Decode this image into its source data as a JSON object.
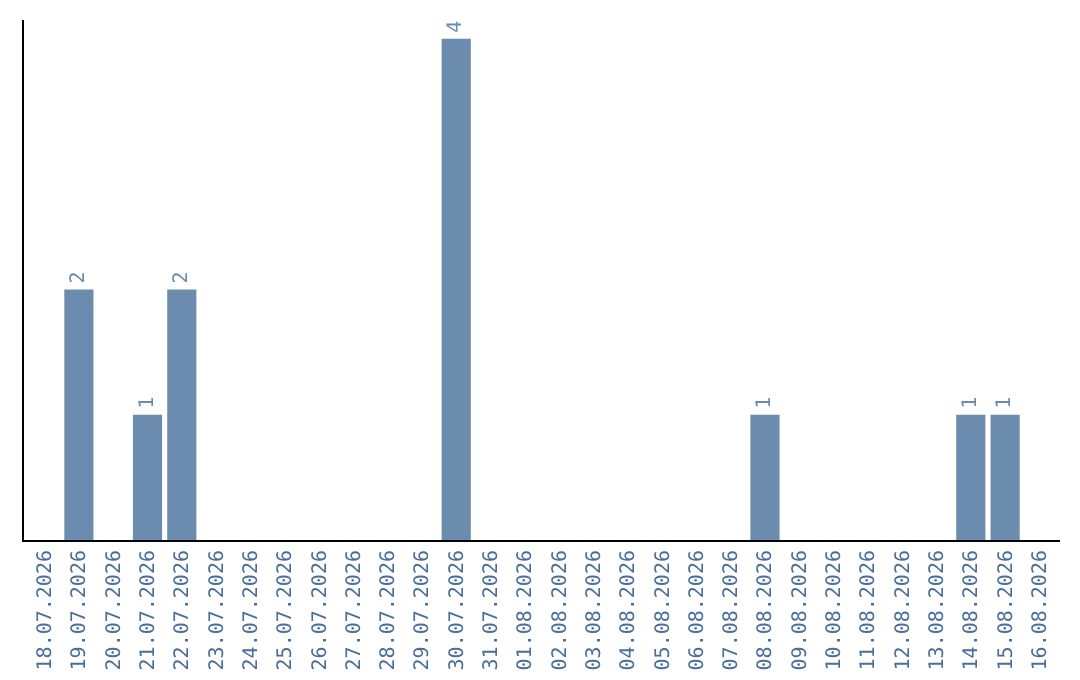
{
  "chart_data": {
    "type": "bar",
    "categories": [
      "18.07.2026",
      "19.07.2026",
      "20.07.2026",
      "21.07.2026",
      "22.07.2026",
      "23.07.2026",
      "24.07.2026",
      "25.07.2026",
      "26.07.2026",
      "27.07.2026",
      "28.07.2026",
      "29.07.2026",
      "30.07.2026",
      "31.07.2026",
      "01.08.2026",
      "02.08.2026",
      "03.08.2026",
      "04.08.2026",
      "05.08.2026",
      "06.08.2026",
      "07.08.2026",
      "08.08.2026",
      "09.08.2026",
      "10.08.2026",
      "11.08.2026",
      "12.08.2026",
      "13.08.2026",
      "14.08.2026",
      "15.08.2026",
      "16.08.2026"
    ],
    "values": [
      0,
      2,
      0,
      1,
      2,
      0,
      0,
      0,
      0,
      0,
      0,
      0,
      4,
      0,
      0,
      0,
      0,
      0,
      0,
      0,
      0,
      1,
      0,
      0,
      0,
      0,
      0,
      1,
      1,
      0
    ],
    "value_labels": [
      null,
      "2",
      null,
      "1",
      "2",
      null,
      null,
      null,
      null,
      null,
      null,
      null,
      "4",
      null,
      null,
      null,
      null,
      null,
      null,
      null,
      null,
      "1",
      null,
      null,
      null,
      null,
      null,
      "1",
      "1",
      null
    ],
    "color": "#6b8cae",
    "ylim": [
      0,
      4.15
    ],
    "tick_labels": "x",
    "grid": false,
    "legend": false
  }
}
